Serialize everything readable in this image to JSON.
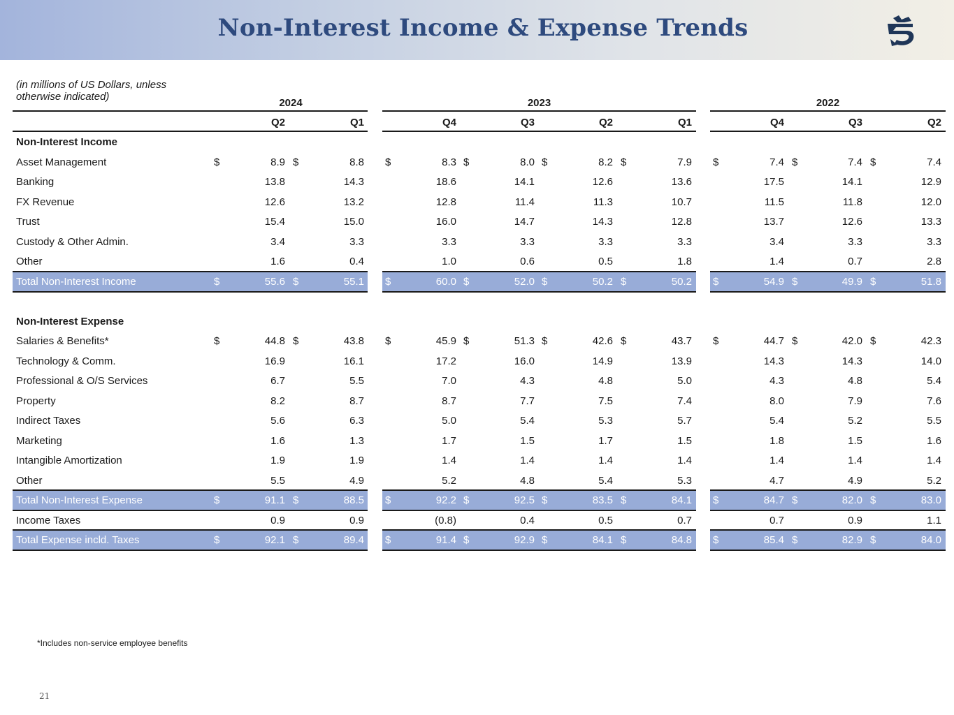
{
  "title": "Non-Interest Income & Expense Trends",
  "units_note": "(in millions of US Dollars, unless otherwise indicated)",
  "logo_icon": "griffin-logo-icon",
  "years": [
    "2024",
    "2023",
    "2022"
  ],
  "quarters": [
    "Q2",
    "Q1",
    "Q4",
    "Q3",
    "Q2",
    "Q1",
    "Q4",
    "Q3",
    "Q2"
  ],
  "rows": [
    {
      "type": "section",
      "label": "Non-Interest Income"
    },
    {
      "type": "data",
      "label": "Asset Management",
      "dollar": true,
      "values": [
        "8.9",
        "8.8",
        "8.3",
        "8.0",
        "8.2",
        "7.9",
        "7.4",
        "7.4",
        "7.4"
      ]
    },
    {
      "type": "data",
      "label": "Banking",
      "values": [
        "13.8",
        "14.3",
        "18.6",
        "14.1",
        "12.6",
        "13.6",
        "17.5",
        "14.1",
        "12.9"
      ]
    },
    {
      "type": "data",
      "label": "FX Revenue",
      "values": [
        "12.6",
        "13.2",
        "12.8",
        "11.4",
        "11.3",
        "10.7",
        "11.5",
        "11.8",
        "12.0"
      ]
    },
    {
      "type": "data",
      "label": "Trust",
      "values": [
        "15.4",
        "15.0",
        "16.0",
        "14.7",
        "14.3",
        "12.8",
        "13.7",
        "12.6",
        "13.3"
      ]
    },
    {
      "type": "data",
      "label": "Custody & Other Admin.",
      "values": [
        "3.4",
        "3.3",
        "3.3",
        "3.3",
        "3.3",
        "3.3",
        "3.4",
        "3.3",
        "3.3"
      ]
    },
    {
      "type": "data",
      "label": "Other",
      "values": [
        "1.6",
        "0.4",
        "1.0",
        "0.6",
        "0.5",
        "1.8",
        "1.4",
        "0.7",
        "2.8"
      ]
    },
    {
      "type": "total",
      "label": "Total Non-Interest Income",
      "dollar": true,
      "values": [
        "55.6",
        "55.1",
        "60.0",
        "52.0",
        "50.2",
        "50.2",
        "54.9",
        "49.9",
        "51.8"
      ]
    },
    {
      "type": "blank"
    },
    {
      "type": "section",
      "label": "Non-Interest Expense"
    },
    {
      "type": "data",
      "label": "Salaries & Benefits*",
      "dollar": true,
      "values": [
        "44.8",
        "43.8",
        "45.9",
        "51.3",
        "42.6",
        "43.7",
        "44.7",
        "42.0",
        "42.3"
      ]
    },
    {
      "type": "data",
      "label": "Technology & Comm.",
      "values": [
        "16.9",
        "16.1",
        "17.2",
        "16.0",
        "14.9",
        "13.9",
        "14.3",
        "14.3",
        "14.0"
      ]
    },
    {
      "type": "data",
      "label": "Professional & O/S Services",
      "values": [
        "6.7",
        "5.5",
        "7.0",
        "4.3",
        "4.8",
        "5.0",
        "4.3",
        "4.8",
        "5.4"
      ]
    },
    {
      "type": "data",
      "label": "Property",
      "values": [
        "8.2",
        "8.7",
        "8.7",
        "7.7",
        "7.5",
        "7.4",
        "8.0",
        "7.9",
        "7.6"
      ]
    },
    {
      "type": "data",
      "label": "Indirect Taxes",
      "values": [
        "5.6",
        "6.3",
        "5.0",
        "5.4",
        "5.3",
        "5.7",
        "5.4",
        "5.2",
        "5.5"
      ]
    },
    {
      "type": "data",
      "label": "Marketing",
      "values": [
        "1.6",
        "1.3",
        "1.7",
        "1.5",
        "1.7",
        "1.5",
        "1.8",
        "1.5",
        "1.6"
      ]
    },
    {
      "type": "data",
      "label": "Intangible Amortization",
      "values": [
        "1.9",
        "1.9",
        "1.4",
        "1.4",
        "1.4",
        "1.4",
        "1.4",
        "1.4",
        "1.4"
      ]
    },
    {
      "type": "data",
      "label": "Other",
      "values": [
        "5.5",
        "4.9",
        "5.2",
        "4.8",
        "5.4",
        "5.3",
        "4.7",
        "4.9",
        "5.2"
      ]
    },
    {
      "type": "total",
      "label": "Total Non-Interest Expense",
      "dollar": true,
      "values": [
        "91.1",
        "88.5",
        "92.2",
        "92.5",
        "83.5",
        "84.1",
        "84.7",
        "82.0",
        "83.0"
      ]
    },
    {
      "type": "data",
      "label": "Income Taxes",
      "values": [
        "0.9",
        "0.9",
        "(0.8)",
        "0.4",
        "0.5",
        "0.7",
        "0.7",
        "0.9",
        "1.1"
      ]
    },
    {
      "type": "total",
      "label": "Total Expense incld. Taxes",
      "dollar": true,
      "values": [
        "92.1",
        "89.4",
        "91.4",
        "92.9",
        "84.1",
        "84.8",
        "85.4",
        "82.9",
        "84.0"
      ]
    }
  ],
  "footnote": "*Includes non-service employee benefits",
  "page_number": "21",
  "colors": {
    "total_band": "#98acd8",
    "title": "#2e4a7e"
  }
}
